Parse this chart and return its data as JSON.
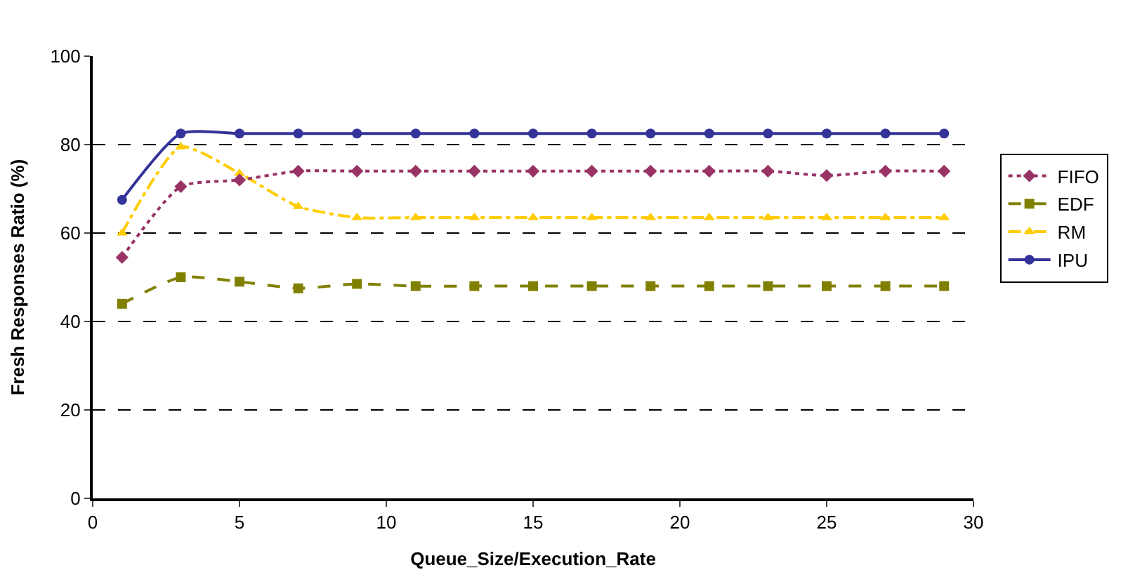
{
  "chart_data": {
    "type": "line",
    "xlabel": "Queue_Size/Execution_Rate",
    "ylabel": "Fresh Responses Ratio (%)",
    "x": [
      1,
      3,
      5,
      7,
      9,
      11,
      13,
      15,
      17,
      19,
      21,
      23,
      25,
      27,
      29
    ],
    "series": [
      {
        "name": "FIFO",
        "color": "#993366",
        "marker": "diamond",
        "line_style": "dotted",
        "values": [
          54.5,
          70.5,
          72,
          74,
          74,
          74,
          74,
          74,
          74,
          74,
          74,
          74,
          73,
          74,
          74
        ]
      },
      {
        "name": "EDF",
        "color": "#808000",
        "marker": "square",
        "line_style": "dashed",
        "values": [
          44,
          50,
          49,
          47.5,
          48.5,
          48,
          48,
          48,
          48,
          48,
          48,
          48,
          48,
          48,
          48
        ]
      },
      {
        "name": "RM",
        "color": "#ffcc00",
        "marker": "triangle",
        "line_style": "dashdot",
        "values": [
          60,
          79.5,
          73.5,
          66,
          63.5,
          63.5,
          63.5,
          63.5,
          63.5,
          63.5,
          63.5,
          63.5,
          63.5,
          63.5,
          63.5
        ]
      },
      {
        "name": "IPU",
        "color": "#333399",
        "marker": "circle",
        "line_style": "solid",
        "values": [
          67.5,
          82.5,
          82.5,
          82.5,
          82.5,
          82.5,
          82.5,
          82.5,
          82.5,
          82.5,
          82.5,
          82.5,
          82.5,
          82.5,
          82.5
        ]
      }
    ],
    "xlim": [
      0,
      30
    ],
    "xticks": [
      0,
      5,
      10,
      15,
      20,
      25,
      30
    ],
    "ylim": [
      0,
      100
    ],
    "yticks": [
      0,
      20,
      40,
      60,
      80,
      100
    ],
    "grid": "y",
    "legend": "right"
  }
}
